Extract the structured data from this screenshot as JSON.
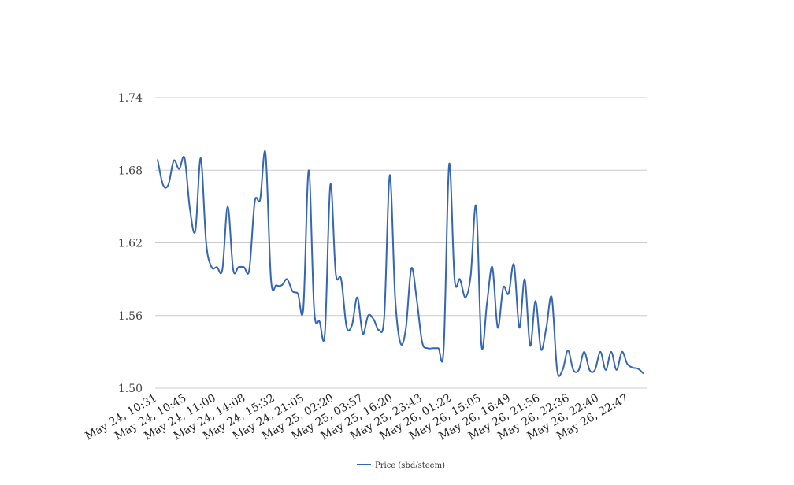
{
  "chart_data": {
    "type": "line",
    "title": "",
    "xlabel": "",
    "ylabel": "",
    "ylim": [
      1.5,
      1.74
    ],
    "y_ticks": [
      "1.50",
      "1.56",
      "1.62",
      "1.68",
      "1.74"
    ],
    "grid": true,
    "legend_position": "bottom",
    "x_tick_labels": [
      "May 24, 10:31",
      "May 24, 10:45",
      "May 24, 11:00",
      "May 24, 14:08",
      "May 24, 15:32",
      "May 24, 21:05",
      "May 25, 02:20",
      "May 25, 03:57",
      "May 25, 16:20",
      "May 25, 23:43",
      "May 26, 01:22",
      "May 26, 15:05",
      "May 26, 16:49",
      "May 26, 21:56",
      "May 26, 22:36",
      "May 26, 22:40",
      "May 26, 22:47"
    ],
    "series": [
      {
        "name": "Price (sbd/steem)",
        "color": "#3565b5",
        "values": [
          1.689,
          1.668,
          1.668,
          1.688,
          1.681,
          1.69,
          1.648,
          1.63,
          1.69,
          1.62,
          1.6,
          1.6,
          1.598,
          1.65,
          1.598,
          1.6,
          1.6,
          1.598,
          1.654,
          1.656,
          1.694,
          1.59,
          1.585,
          1.585,
          1.59,
          1.58,
          1.578,
          1.566,
          1.68,
          1.565,
          1.555,
          1.546,
          1.668,
          1.595,
          1.59,
          1.551,
          1.552,
          1.575,
          1.545,
          1.56,
          1.557,
          1.548,
          1.56,
          1.676,
          1.575,
          1.537,
          1.55,
          1.599,
          1.573,
          1.538,
          1.533,
          1.533,
          1.533,
          1.533,
          1.685,
          1.59,
          1.59,
          1.575,
          1.593,
          1.65,
          1.535,
          1.57,
          1.6,
          1.55,
          1.583,
          1.578,
          1.602,
          1.55,
          1.59,
          1.535,
          1.572,
          1.532,
          1.55,
          1.575,
          1.515,
          1.515,
          1.531,
          1.515,
          1.515,
          1.53,
          1.515,
          1.515,
          1.53,
          1.515,
          1.53,
          1.515,
          1.53,
          1.52,
          1.517,
          1.516,
          1.512
        ]
      }
    ]
  }
}
